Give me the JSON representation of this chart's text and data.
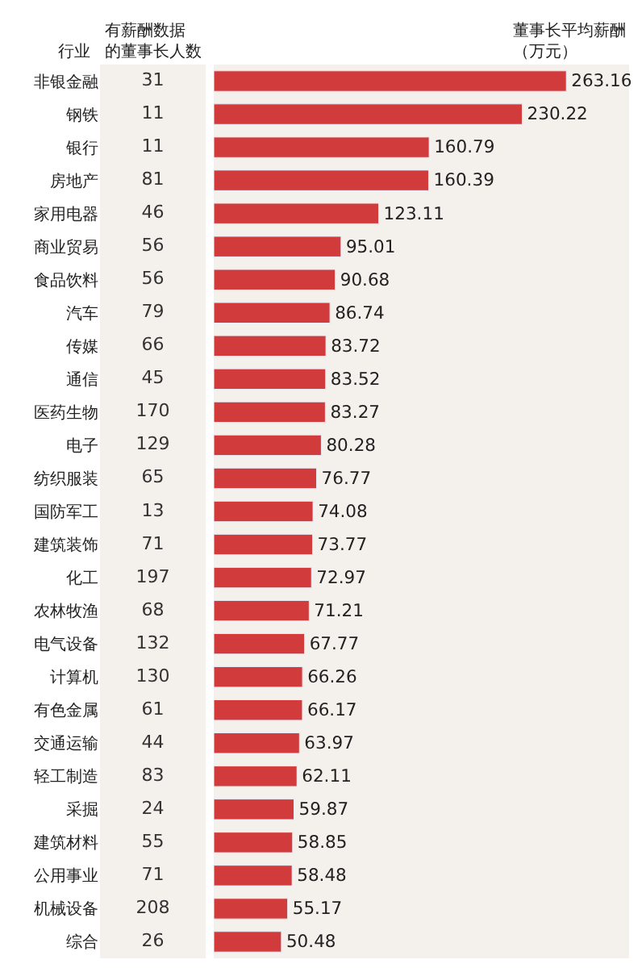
{
  "chart_data": [
    {
      "type": "other",
      "title": "有薪酬数据的董事长人数",
      "ylabel": "行业",
      "data_labels": true,
      "categories": [
        "非银金融",
        "钢铁",
        "银行",
        "房地产",
        "家用电器",
        "商业贸易",
        "食品饮料",
        "汽车",
        "传媒",
        "通信",
        "医药生物",
        "电子",
        "纺织服装",
        "国防军工",
        "建筑装饰",
        "化工",
        "农林牧渔",
        "电气设备",
        "计算机",
        "有色金属",
        "交通运输",
        "轻工制造",
        "采掘",
        "建筑材料",
        "公用事业",
        "机械设备",
        "综合"
      ],
      "values": [
        31,
        11,
        11,
        81,
        46,
        56,
        56,
        79,
        66,
        45,
        170,
        129,
        65,
        13,
        71,
        197,
        68,
        132,
        130,
        61,
        44,
        83,
        24,
        55,
        71,
        208,
        26
      ]
    },
    {
      "type": "bar",
      "orientation": "horizontal",
      "title": "董事长平均薪酬（万元）",
      "color": "#d23b3b",
      "data_labels": true,
      "xlim": [
        0,
        310
      ],
      "tick_labels": false,
      "grid": false,
      "categories": [
        "非银金融",
        "钢铁",
        "银行",
        "房地产",
        "家用电器",
        "商业贸易",
        "食品饮料",
        "汽车",
        "传媒",
        "通信",
        "医药生物",
        "电子",
        "纺织服装",
        "国防军工",
        "建筑装饰",
        "化工",
        "农林牧渔",
        "电气设备",
        "计算机",
        "有色金属",
        "交通运输",
        "轻工制造",
        "采掘",
        "建筑材料",
        "公用事业",
        "机械设备",
        "综合"
      ],
      "values": [
        263.16,
        230.22,
        160.79,
        160.39,
        123.11,
        95.01,
        90.68,
        86.74,
        83.72,
        83.52,
        83.27,
        80.28,
        76.77,
        74.08,
        73.77,
        72.97,
        71.21,
        67.77,
        66.26,
        66.17,
        63.97,
        62.11,
        59.87,
        58.85,
        58.48,
        55.17,
        50.48
      ]
    }
  ]
}
